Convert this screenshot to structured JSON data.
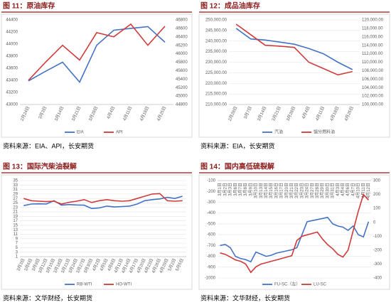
{
  "chart_data": [
    {
      "type": "line",
      "title": "图 11：原油库存",
      "source": "资料来源：EIA、API，长安期货",
      "categories": [
        "2月24日",
        "3月3日",
        "3月14日",
        "3月21日",
        "3月28日",
        "4月4日",
        "4月11日",
        "4月18日",
        "4月25日"
      ],
      "series": [
        {
          "name": "EIA",
          "color": "#4472c4",
          "values": [
            43390,
            43550,
            43700,
            43370,
            43980,
            44230,
            44260,
            44290,
            44030
          ]
        },
        {
          "name": "API",
          "color": "#d03a3a",
          "axis": "y2",
          "values": [
            45370,
            45800,
            46200,
            45850,
            46500,
            46400,
            46700,
            46200,
            46650
          ]
        }
      ],
      "ylim": [
        43000,
        44400
      ],
      "yticks": [
        43000,
        43200,
        43400,
        43600,
        43800,
        44000,
        44200,
        44400
      ],
      "y2lim": [
        44800,
        46800
      ],
      "y2ticks": [
        44800,
        45000,
        45200,
        45400,
        45600,
        45800,
        46000,
        46200,
        46400,
        46600,
        46800
      ],
      "grid": false,
      "legend": "bottom"
    },
    {
      "type": "line",
      "title": "图 12：成品油库存",
      "source": "资料来源：EIA，长安期货",
      "categories": [
        "2月28日",
        "3月7日",
        "3月14日",
        "3月21日",
        "3月28日",
        "4月4日",
        "4月11日",
        "4月18日",
        "4月25日"
      ],
      "series": [
        {
          "name": "汽油",
          "color": "#4472c4",
          "values": [
            246000,
            241000,
            240500,
            239500,
            238500,
            236500,
            234000,
            230000,
            226500
          ]
        },
        {
          "name": "馏分燃料油",
          "color": "#d03a3a",
          "axis": "y2",
          "values": [
            119000,
            116500,
            114000,
            113800,
            113500,
            110000,
            108500,
            107000,
            107800
          ]
        }
      ],
      "ylim": [
        210000,
        250000
      ],
      "yticks": [
        {
          "value": 210000,
          "label": "210,000.00"
        },
        {
          "value": 215000,
          "label": "215,000.00"
        },
        {
          "value": 220000,
          "label": "220,000.00"
        },
        {
          "value": 225000,
          "label": "225,000.00"
        },
        {
          "value": 230000,
          "label": "230,000.00"
        },
        {
          "value": 235000,
          "label": "235,000.00"
        },
        {
          "value": 240000,
          "label": "240,000.00"
        },
        {
          "value": 245000,
          "label": "245,000.00"
        },
        {
          "value": 250000,
          "label": "250,000.00"
        }
      ],
      "y2lim": [
        100000,
        120000
      ],
      "y2ticks": [
        {
          "value": 100000,
          "label": "100,000.00"
        },
        {
          "value": 102000,
          "label": "102,000.00"
        },
        {
          "value": 104000,
          "label": "104,000.00"
        },
        {
          "value": 106000,
          "label": "106,000.00"
        },
        {
          "value": 108000,
          "label": "108,000.00"
        },
        {
          "value": 110000,
          "label": "110,000.00"
        },
        {
          "value": 112000,
          "label": "112,000.00"
        },
        {
          "value": 114000,
          "label": "114,000.00"
        },
        {
          "value": 116000,
          "label": "116,000.00"
        },
        {
          "value": 118000,
          "label": "118,000.00"
        },
        {
          "value": 120000,
          "label": "120,000.00"
        }
      ],
      "grid": true,
      "legend": "bottom"
    },
    {
      "type": "line",
      "title": "图 13：国际汽柴油裂解",
      "source": "资料来源：文华财经，长安期货",
      "categories": [
        "3月3日",
        "3月6日",
        "3月9日",
        "3月12日",
        "3月15日",
        "3月18日",
        "3月21日",
        "3月24日",
        "3月27日",
        "3月30日",
        "4月2日",
        "4月5日",
        "4月8日",
        "4月11日",
        "4月14日",
        "4月17日",
        "4月20日",
        "4月23日",
        "4月26日",
        "4月29日",
        "5月2日",
        "5月5日"
      ],
      "series": [
        {
          "name": "RB-WTI",
          "color": "#4472c4",
          "values": [
            23.8,
            24.5,
            24.6,
            24.5,
            26.0,
            24.0,
            24.3,
            24.1,
            24.0,
            22.5,
            22.8,
            23.6,
            23.2,
            23.4,
            23.6,
            24.5,
            26.0,
            26.5,
            26.8,
            27.5,
            27.0,
            28.0
          ]
        },
        {
          "name": "HO-WTI",
          "color": "#d03a3a",
          "values": [
            27.0,
            26.0,
            25.8,
            25.6,
            25.8,
            24.5,
            25.3,
            25.8,
            26.5,
            25.2,
            26.0,
            26.5,
            26.0,
            25.8,
            26.0,
            27.0,
            28.0,
            29.0,
            29.2,
            26.0,
            25.8,
            26.0
          ]
        }
      ],
      "ylim": [
        1,
        35
      ],
      "yticks": [
        1,
        3,
        5,
        7,
        9,
        11,
        13,
        15,
        17,
        19,
        21,
        23,
        25,
        27,
        29,
        31,
        33,
        35
      ],
      "grid": true,
      "legend": "bottom"
    },
    {
      "type": "line",
      "title": "图 14：国内高低硫裂解",
      "source": "资料来源：文华财经，长安期货",
      "categories": [
        "3月1日",
        "3月2日",
        "3月3日",
        "3月6日",
        "3月7日",
        "3月8日",
        "3月9日",
        "3月10日",
        "3月13日",
        "3月14日",
        "3月15日",
        "3月16日",
        "3月17日",
        "3月20日",
        "3月21日",
        "3月22日",
        "3月23日",
        "3月24日",
        "3月27日",
        "3月28日",
        "3月29日",
        "3月30日",
        "3月31日",
        "4月3日",
        "4月4日",
        "4月6日",
        "4月7日",
        "4月10日",
        "4月11日",
        "4月12日"
      ],
      "series": [
        {
          "name": "FU-SC（左）",
          "color": "#4472c4",
          "values": [
            -700,
            -690,
            -720,
            -800,
            -820,
            -830,
            -850,
            -760,
            -780,
            -800,
            -790,
            -770,
            -760,
            -750,
            -740,
            -720,
            -600,
            -480,
            -470,
            -460,
            -450,
            -440,
            -500,
            -520,
            -530,
            -560,
            -520,
            -600,
            -620,
            -480
          ]
        },
        {
          "name": "LU-SC",
          "color": "#d03a3a",
          "axis": "y2",
          "values": [
            -220,
            -230,
            -250,
            -270,
            -280,
            -300,
            -360,
            -320,
            -300,
            -290,
            -280,
            -270,
            -260,
            -250,
            -240,
            -130,
            -100,
            -90,
            -80,
            -70,
            -120,
            -160,
            -190,
            -230,
            -250,
            -200,
            -60,
            80,
            200,
            160
          ]
        }
      ],
      "ylim": [
        -1000,
        -100
      ],
      "yticks": [
        -1000,
        -900,
        -800,
        -700,
        -600,
        -500,
        -400,
        -300,
        -200,
        -100
      ],
      "y2lim": [
        -400,
        300
      ],
      "y2ticks": [
        -400,
        -300,
        -200,
        -100,
        0,
        100,
        200,
        300
      ],
      "grid": true,
      "legend": "bottom",
      "x_axis_position": "top"
    }
  ]
}
